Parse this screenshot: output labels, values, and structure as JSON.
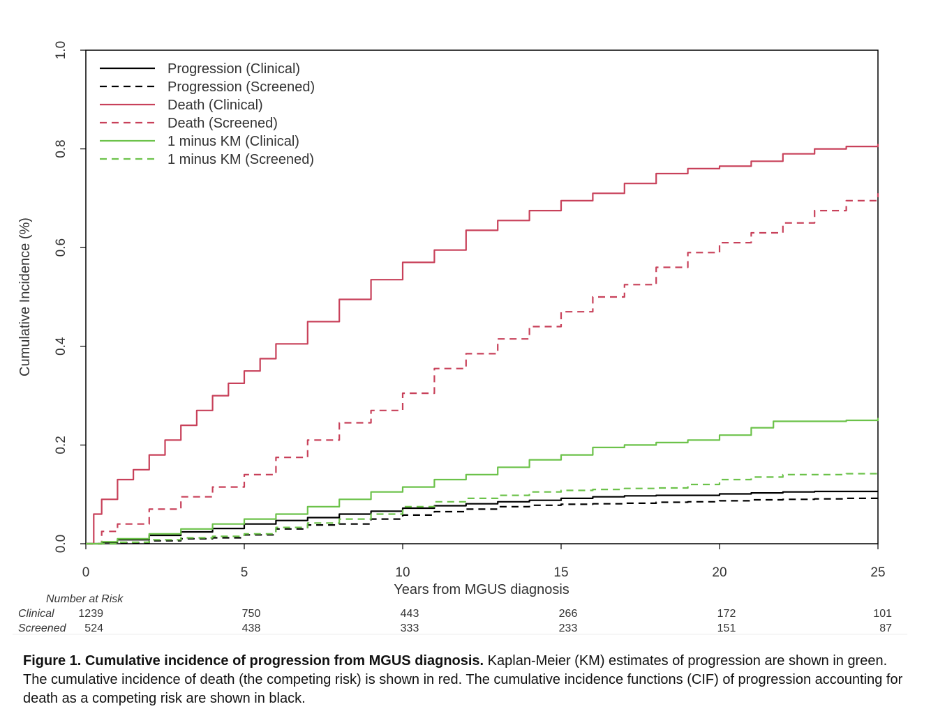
{
  "chart_data": {
    "type": "line",
    "xlabel": "Years from MGUS diagnosis",
    "ylabel": "Cumulative Incidence (%)",
    "xlim": [
      0,
      25
    ],
    "ylim": [
      0,
      1.0
    ],
    "x_ticks": [
      "0",
      "5",
      "10",
      "15",
      "20",
      "25"
    ],
    "y_ticks": [
      "0.0",
      "0.2",
      "0.4",
      "0.6",
      "0.8",
      "1.0"
    ],
    "grid": false,
    "legend_position": "top-left",
    "series": [
      {
        "name": "Progression (Clinical)",
        "color": "#000000",
        "dash": "solid",
        "x": [
          0,
          0.5,
          1,
          2,
          3,
          4,
          5,
          6,
          7,
          8,
          9,
          10,
          11,
          12,
          13,
          14,
          15,
          16,
          17,
          18,
          19,
          20,
          21,
          22,
          23,
          24,
          25
        ],
        "y": [
          0,
          0.003,
          0.008,
          0.017,
          0.024,
          0.031,
          0.04,
          0.047,
          0.053,
          0.06,
          0.066,
          0.072,
          0.077,
          0.081,
          0.085,
          0.088,
          0.092,
          0.095,
          0.097,
          0.098,
          0.098,
          0.101,
          0.103,
          0.105,
          0.106,
          0.106,
          0.106
        ]
      },
      {
        "name": "Progression (Screened)",
        "color": "#000000",
        "dash": "dashed",
        "x": [
          0,
          1,
          2,
          3,
          4,
          5,
          6,
          7,
          8,
          9,
          10,
          11,
          12,
          13,
          14,
          15,
          16,
          17,
          18,
          19,
          20,
          21,
          22,
          23,
          24,
          25
        ],
        "y": [
          0,
          0.002,
          0.006,
          0.01,
          0.012,
          0.018,
          0.03,
          0.038,
          0.04,
          0.05,
          0.058,
          0.065,
          0.07,
          0.075,
          0.078,
          0.08,
          0.081,
          0.082,
          0.084,
          0.085,
          0.087,
          0.089,
          0.09,
          0.091,
          0.092,
          0.093
        ]
      },
      {
        "name": "Death (Clinical)",
        "color": "#c8415a",
        "dash": "solid",
        "x": [
          0,
          0.25,
          0.5,
          1,
          1.5,
          2,
          2.5,
          3,
          3.5,
          4,
          4.5,
          5,
          5.5,
          6,
          7,
          8,
          9,
          10,
          11,
          12,
          13,
          14,
          15,
          16,
          17,
          18,
          19,
          20,
          21,
          22,
          23,
          24,
          25
        ],
        "y": [
          0,
          0.06,
          0.09,
          0.13,
          0.15,
          0.18,
          0.21,
          0.24,
          0.27,
          0.3,
          0.325,
          0.35,
          0.375,
          0.405,
          0.45,
          0.495,
          0.535,
          0.57,
          0.595,
          0.635,
          0.655,
          0.675,
          0.695,
          0.71,
          0.73,
          0.75,
          0.76,
          0.765,
          0.775,
          0.79,
          0.8,
          0.805,
          0.81
        ]
      },
      {
        "name": "Death (Screened)",
        "color": "#c8415a",
        "dash": "dashed",
        "x": [
          0,
          0.5,
          1,
          2,
          3,
          4,
          5,
          6,
          7,
          8,
          9,
          10,
          11,
          12,
          13,
          14,
          15,
          16,
          17,
          18,
          19,
          20,
          21,
          22,
          23,
          24,
          25
        ],
        "y": [
          0,
          0.025,
          0.04,
          0.07,
          0.095,
          0.115,
          0.14,
          0.175,
          0.21,
          0.245,
          0.27,
          0.305,
          0.355,
          0.385,
          0.415,
          0.44,
          0.47,
          0.5,
          0.525,
          0.56,
          0.59,
          0.61,
          0.63,
          0.65,
          0.675,
          0.695,
          0.71
        ]
      },
      {
        "name": "1 minus KM (Clinical)",
        "color": "#6cc24a",
        "dash": "solid",
        "x": [
          0,
          0.5,
          1,
          2,
          3,
          4,
          5,
          6,
          7,
          8,
          9,
          10,
          11,
          12,
          13,
          14,
          15,
          16,
          17,
          18,
          19,
          20,
          21,
          21.7,
          22,
          23,
          24,
          25
        ],
        "y": [
          0,
          0.004,
          0.01,
          0.02,
          0.03,
          0.04,
          0.05,
          0.06,
          0.075,
          0.09,
          0.105,
          0.115,
          0.13,
          0.14,
          0.155,
          0.17,
          0.18,
          0.195,
          0.2,
          0.205,
          0.21,
          0.22,
          0.235,
          0.248,
          0.248,
          0.248,
          0.25,
          0.255
        ]
      },
      {
        "name": "1 minus KM (Screened)",
        "color": "#6cc24a",
        "dash": "dashed",
        "x": [
          0,
          1,
          2,
          3,
          4,
          5,
          6,
          7,
          8,
          9,
          10,
          11,
          12,
          13,
          14,
          15,
          16,
          17,
          18,
          19,
          20,
          21,
          22,
          23,
          24,
          25
        ],
        "y": [
          0,
          0.003,
          0.008,
          0.012,
          0.015,
          0.02,
          0.033,
          0.042,
          0.05,
          0.06,
          0.075,
          0.085,
          0.092,
          0.098,
          0.105,
          0.108,
          0.11,
          0.112,
          0.113,
          0.12,
          0.13,
          0.135,
          0.14,
          0.14,
          0.142,
          0.143
        ]
      }
    ],
    "risk_table": {
      "header": "Number at Risk",
      "times": [
        0,
        5,
        10,
        15,
        20,
        25
      ],
      "rows": [
        {
          "label": "Clinical",
          "values": [
            "1239",
            "750",
            "443",
            "266",
            "172",
            "101"
          ]
        },
        {
          "label": "Screened",
          "values": [
            "524",
            "438",
            "333",
            "233",
            "151",
            "87"
          ]
        }
      ]
    }
  },
  "caption": {
    "bold": "Figure 1. Cumulative incidence of progression from MGUS diagnosis.",
    "text": " Kaplan-Meier (KM) estimates of progression are shown in green. The cumulative incidence of death (the competing risk) is shown in red. The cumulative incidence functions (CIF) of progression accounting for death as a competing risk are shown in black."
  }
}
